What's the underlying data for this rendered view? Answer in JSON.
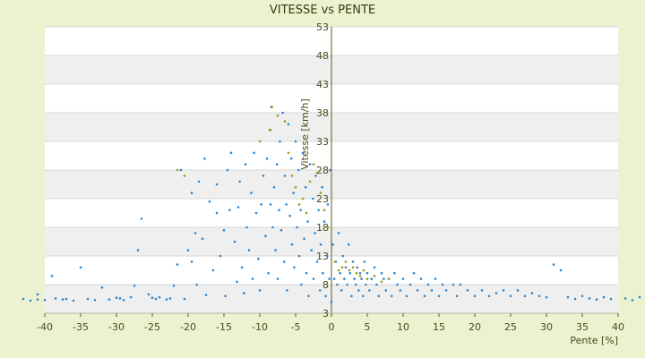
{
  "chart_data": {
    "type": "scatter",
    "title": "VITESSE vs PENTE",
    "xlabel": "Pente [%]",
    "ylabel": "Vitesse [km/h]",
    "xlim": [
      -40,
      40
    ],
    "ylim": [
      3,
      53
    ],
    "xticks": [
      -40,
      -35,
      -30,
      -25,
      -20,
      -15,
      -10,
      -5,
      0,
      5,
      10,
      15,
      20,
      25,
      30,
      35,
      40
    ],
    "yticks": [
      3,
      8,
      13,
      18,
      23,
      28,
      33,
      38,
      43,
      48,
      53
    ],
    "grid": true,
    "legend": "none",
    "colors": {
      "series": "#2e86d0",
      "highlight": "#9a9a20",
      "plot_background": "#ffffff",
      "band": "#efefef",
      "page": "#ecf2cf",
      "axis": "#5a5a20"
    },
    "series": [
      {
        "values": [
          [
            -43,
            5.5
          ],
          [
            -42,
            5.2
          ],
          [
            -41,
            5.4
          ],
          [
            -41,
            6.3
          ],
          [
            -40,
            5.3
          ],
          [
            -39,
            9.5
          ],
          [
            -38.5,
            5.6
          ],
          [
            -37.5,
            5.4
          ],
          [
            -37,
            5.5
          ],
          [
            -36,
            5.2
          ],
          [
            -35,
            11
          ],
          [
            -34,
            5.5
          ],
          [
            -33,
            5.3
          ],
          [
            -32,
            7.5
          ],
          [
            -31,
            5.4
          ],
          [
            -30,
            5.7
          ],
          [
            -29.5,
            5.6
          ],
          [
            -29,
            5.3
          ],
          [
            -28,
            5.8
          ],
          [
            -27.5,
            7.8
          ],
          [
            -27,
            14
          ],
          [
            -26.5,
            19.5
          ],
          [
            -25.5,
            6.3
          ],
          [
            -25,
            5.7
          ],
          [
            -24.5,
            5.5
          ],
          [
            -24,
            5.8
          ],
          [
            -23,
            5.4
          ],
          [
            -22.5,
            5.6
          ],
          [
            -22,
            7.8
          ],
          [
            -21.5,
            11.5
          ],
          [
            -21,
            28
          ],
          [
            -20.5,
            5.5
          ],
          [
            -20,
            14
          ],
          [
            -19.5,
            12
          ],
          [
            -19.5,
            24
          ],
          [
            -19,
            17
          ],
          [
            -18.8,
            8
          ],
          [
            -18.5,
            26
          ],
          [
            -18,
            16
          ],
          [
            -17.7,
            30
          ],
          [
            -17.5,
            6.2
          ],
          [
            -17,
            22.5
          ],
          [
            -16.5,
            10.5
          ],
          [
            -16,
            20.5
          ],
          [
            -16,
            25.5
          ],
          [
            -15.5,
            13
          ],
          [
            -15,
            17.5
          ],
          [
            -14.8,
            6
          ],
          [
            -14.5,
            28
          ],
          [
            -14.2,
            21
          ],
          [
            -14,
            31
          ],
          [
            -13.5,
            15.5
          ],
          [
            -13.2,
            8.5
          ],
          [
            -13,
            21.5
          ],
          [
            -12.8,
            26
          ],
          [
            -12.5,
            11
          ],
          [
            -12.2,
            6.5
          ],
          [
            -12,
            29
          ],
          [
            -11.8,
            18
          ],
          [
            -11.5,
            14
          ],
          [
            -11.2,
            24
          ],
          [
            -11,
            9
          ],
          [
            -10.8,
            31
          ],
          [
            -10.5,
            20.5
          ],
          [
            -10.2,
            12.5
          ],
          [
            -10,
            7
          ],
          [
            -9.8,
            22
          ],
          [
            -9.5,
            27
          ],
          [
            -9.2,
            16.5
          ],
          [
            -9,
            30
          ],
          [
            -8.8,
            10
          ],
          [
            -8.6,
            35
          ],
          [
            -8.5,
            22
          ],
          [
            -8.4,
            39
          ],
          [
            -8.2,
            18
          ],
          [
            -8,
            25
          ],
          [
            -7.8,
            14
          ],
          [
            -7.6,
            29
          ],
          [
            -7.5,
            9
          ],
          [
            -7.3,
            21
          ],
          [
            -7.2,
            33
          ],
          [
            -7,
            17.5
          ],
          [
            -6.8,
            38
          ],
          [
            -6.6,
            12
          ],
          [
            -6.5,
            27
          ],
          [
            -6.3,
            22
          ],
          [
            -6.2,
            7
          ],
          [
            -6,
            36
          ],
          [
            -5.8,
            20
          ],
          [
            -5.6,
            30
          ],
          [
            -5.5,
            15
          ],
          [
            -5.3,
            24
          ],
          [
            -5.2,
            11
          ],
          [
            -5,
            33
          ],
          [
            -4.8,
            18
          ],
          [
            -4.6,
            28
          ],
          [
            -4.5,
            13
          ],
          [
            -4.3,
            21
          ],
          [
            -4.2,
            8
          ],
          [
            -4,
            31
          ],
          [
            -3.8,
            16
          ],
          [
            -3.6,
            25
          ],
          [
            -3.5,
            10
          ],
          [
            -3.3,
            19
          ],
          [
            -3.2,
            6
          ],
          [
            -3,
            29
          ],
          [
            -2.8,
            14
          ],
          [
            -2.6,
            23
          ],
          [
            -2.5,
            9
          ],
          [
            -2.3,
            17
          ],
          [
            -2.2,
            27
          ],
          [
            -2,
            12
          ],
          [
            -1.8,
            21
          ],
          [
            -1.6,
            7
          ],
          [
            -1.5,
            15
          ],
          [
            -1.3,
            25
          ],
          [
            -1.2,
            10
          ],
          [
            -1,
            19
          ],
          [
            -0.8,
            6
          ],
          [
            -0.6,
            13
          ],
          [
            -0.5,
            22
          ],
          [
            -0.3,
            9
          ],
          [
            -0.2,
            28
          ],
          [
            0,
            5
          ],
          [
            0.2,
            15
          ],
          [
            0.4,
            9
          ],
          [
            0.6,
            12
          ],
          [
            0.8,
            8
          ],
          [
            1,
            17
          ],
          [
            1.2,
            10
          ],
          [
            1.4,
            7
          ],
          [
            1.6,
            13
          ],
          [
            1.8,
            9
          ],
          [
            2,
            11
          ],
          [
            2.2,
            8
          ],
          [
            2.4,
            15
          ],
          [
            2.6,
            10
          ],
          [
            2.8,
            6
          ],
          [
            3,
            12
          ],
          [
            3.2,
            9
          ],
          [
            3.4,
            8
          ],
          [
            3.6,
            11
          ],
          [
            3.8,
            7
          ],
          [
            4,
            10
          ],
          [
            4.2,
            9
          ],
          [
            4.4,
            6
          ],
          [
            4.6,
            12
          ],
          [
            4.8,
            8
          ],
          [
            5,
            10
          ],
          [
            5.3,
            7
          ],
          [
            5.6,
            9
          ],
          [
            6,
            11
          ],
          [
            6.3,
            8
          ],
          [
            6.6,
            6
          ],
          [
            7,
            10
          ],
          [
            7.3,
            9
          ],
          [
            7.6,
            7
          ],
          [
            8,
            9
          ],
          [
            8.4,
            6
          ],
          [
            8.8,
            10
          ],
          [
            9.2,
            8
          ],
          [
            9.6,
            7
          ],
          [
            10,
            9
          ],
          [
            10.5,
            6
          ],
          [
            11,
            8
          ],
          [
            11.5,
            10
          ],
          [
            12,
            7
          ],
          [
            12.5,
            9
          ],
          [
            13,
            6
          ],
          [
            13.5,
            8
          ],
          [
            14,
            7
          ],
          [
            14.5,
            9
          ],
          [
            15,
            6
          ],
          [
            15.5,
            8
          ],
          [
            16,
            7
          ],
          [
            17,
            8
          ],
          [
            17.5,
            6
          ],
          [
            18,
            8
          ],
          [
            19,
            7
          ],
          [
            20,
            6
          ],
          [
            21,
            7
          ],
          [
            22,
            6
          ],
          [
            23,
            6.5
          ],
          [
            24,
            7
          ],
          [
            25,
            6
          ],
          [
            26,
            7
          ],
          [
            27,
            6
          ],
          [
            28,
            6.5
          ],
          [
            29,
            6
          ],
          [
            30,
            5.8
          ],
          [
            31,
            11.5
          ],
          [
            32,
            10.5
          ],
          [
            33,
            5.8
          ],
          [
            34,
            5.5
          ],
          [
            35,
            6
          ],
          [
            36,
            5.6
          ],
          [
            37,
            5.4
          ],
          [
            38,
            5.8
          ],
          [
            39,
            5.5
          ],
          [
            41,
            5.6
          ],
          [
            42,
            5.3
          ],
          [
            43,
            5.8
          ]
        ]
      },
      {
        "values": [
          [
            -8.5,
            35
          ],
          [
            -8.3,
            39
          ],
          [
            -7.5,
            37.5
          ],
          [
            -6.5,
            36.5
          ],
          [
            -6,
            31
          ],
          [
            -5.5,
            27
          ],
          [
            -5,
            25
          ],
          [
            -4.5,
            22
          ],
          [
            -4,
            23
          ],
          [
            -3.5,
            20.5
          ],
          [
            -3,
            26
          ],
          [
            -2.5,
            29
          ],
          [
            -2,
            27.5
          ],
          [
            -1.5,
            24
          ],
          [
            -1,
            21
          ],
          [
            -0.5,
            18
          ],
          [
            0.5,
            12
          ],
          [
            1,
            10.5
          ],
          [
            1.5,
            11
          ],
          [
            2,
            12
          ],
          [
            2.5,
            10.5
          ],
          [
            3,
            11
          ],
          [
            3.5,
            10
          ],
          [
            4,
            9.5
          ],
          [
            4.5,
            10.5
          ],
          [
            5,
            9
          ],
          [
            6,
            9.5
          ],
          [
            7,
            8.5
          ],
          [
            8,
            9
          ],
          [
            -21.5,
            28
          ],
          [
            -20.5,
            27
          ],
          [
            -10,
            33
          ]
        ]
      }
    ]
  }
}
